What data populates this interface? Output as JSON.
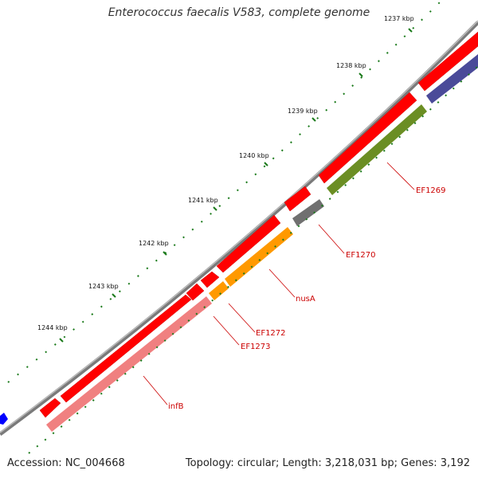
{
  "title": "Enterococcus faecalis V583, complete genome",
  "accession": "Accession: NC_004668",
  "summary": "Topology: circular; Length: 3,218,031 bp; Genes: 3,192",
  "colors": {
    "backbone": "#888888",
    "cds_forward": "#ff0000",
    "tick": "#1a7a1a",
    "label": "#cc0000",
    "nusA": "#ff9900",
    "infB": "#f08080",
    "EF1269": "#6b8e23",
    "EF1270": "#707070",
    "other_gene": "#4a4a99"
  },
  "kbp_labels": [
    "1237 kbp",
    "1238 kbp",
    "1239 kbp",
    "1240 kbp",
    "1241 kbp",
    "1242 kbp",
    "1243 kbp",
    "1244 kbp"
  ],
  "gene_labels": [
    "EF1269",
    "EF1270",
    "nusA",
    "EF1272",
    "EF1273",
    "infB"
  ]
}
